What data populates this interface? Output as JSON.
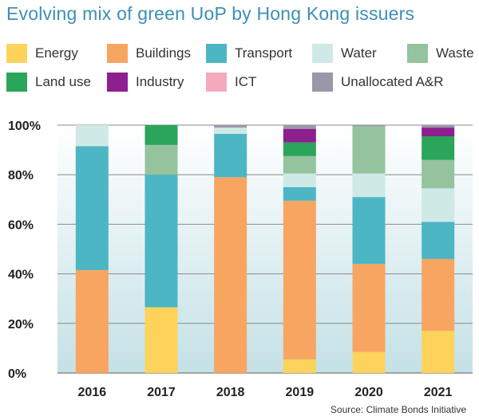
{
  "title": "Evolving mix of green UoP by Hong Kong issuers",
  "source": "Source: Climate Bonds Initiative",
  "legend": [
    {
      "name": "Energy",
      "color": "#fdd35b"
    },
    {
      "name": "Buildings",
      "color": "#f8a562"
    },
    {
      "name": "Transport",
      "color": "#4cb6c4"
    },
    {
      "name": "Water",
      "color": "#cfe9e7"
    },
    {
      "name": "Waste",
      "color": "#94c39e"
    },
    {
      "name": "Land use",
      "color": "#2aa55a"
    },
    {
      "name": "Industry",
      "color": "#8d1f8f"
    },
    {
      "name": "ICT",
      "color": "#f4a9be"
    },
    {
      "name": "Unallocated A&R",
      "color": "#9a98a8"
    }
  ],
  "chart_data": {
    "type": "bar",
    "stacked": true,
    "title": "Evolving mix of green UoP by Hong Kong issuers",
    "categories": [
      "2016",
      "2017",
      "2018",
      "2019",
      "2020",
      "2021"
    ],
    "ylim": [
      0,
      100
    ],
    "yticks": [
      "0%",
      "20%",
      "40%",
      "60%",
      "80%",
      "100%"
    ],
    "grid": true,
    "series": [
      {
        "name": "Energy",
        "values": [
          0,
          26.5,
          0,
          5.5,
          8.5,
          17
        ]
      },
      {
        "name": "Buildings",
        "values": [
          41.5,
          0,
          79,
          64,
          35.5,
          29
        ]
      },
      {
        "name": "Transport",
        "values": [
          50,
          53.5,
          17.5,
          5.5,
          27,
          15
        ]
      },
      {
        "name": "Water",
        "values": [
          8.5,
          0,
          2.5,
          5.5,
          9.5,
          13.5
        ]
      },
      {
        "name": "Waste",
        "values": [
          0,
          12,
          0,
          7,
          19,
          11.5
        ]
      },
      {
        "name": "Land use",
        "values": [
          0,
          8,
          0,
          5.5,
          0,
          9.5
        ]
      },
      {
        "name": "Industry",
        "values": [
          0,
          0,
          0,
          5.5,
          0,
          3.5
        ]
      },
      {
        "name": "ICT",
        "values": [
          0,
          0,
          0,
          0,
          0,
          0
        ]
      },
      {
        "name": "Unallocated A&R",
        "values": [
          0,
          0,
          1,
          1.5,
          0.5,
          1
        ]
      }
    ]
  }
}
